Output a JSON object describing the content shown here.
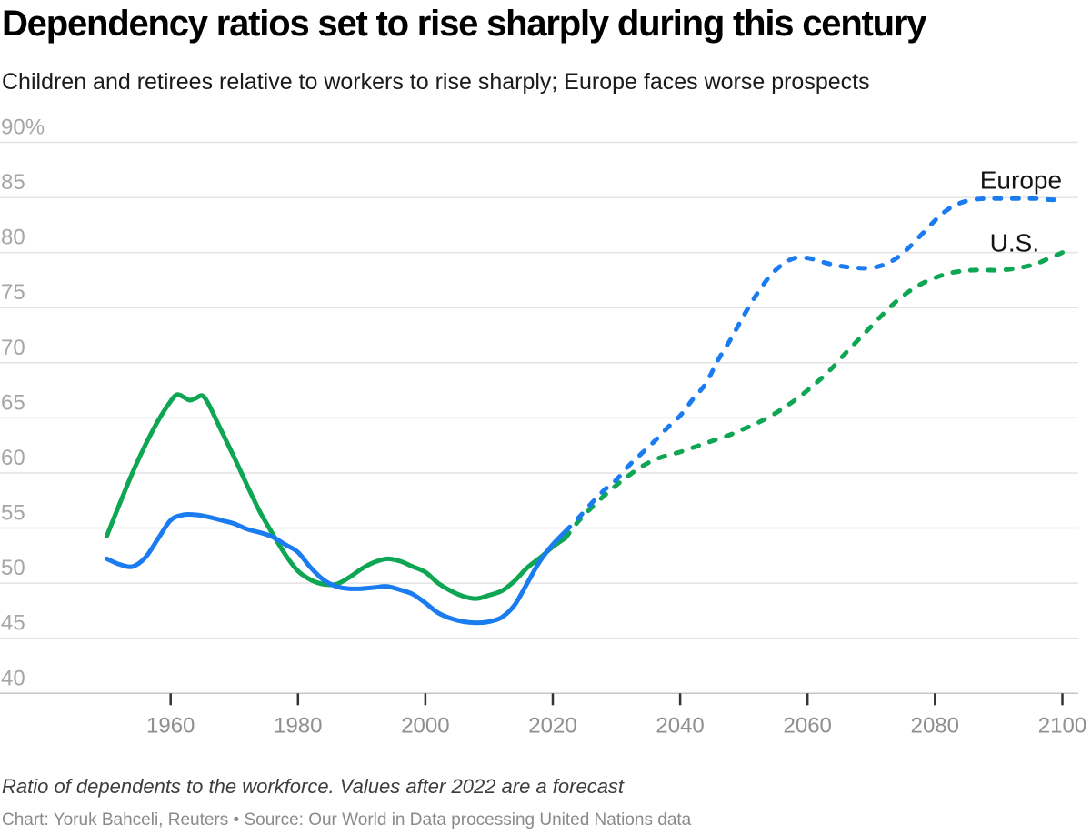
{
  "chart_data": {
    "type": "line",
    "title": "Dependency ratios set to rise sharply during this century",
    "subtitle": "Children and retirees relative to workers to rise sharply; Europe faces worse prospects",
    "note": "Ratio of dependents to the workforce. Values after 2022 are a forecast",
    "credit": "Chart: Yoruk Bahceli, Reuters • Source: Our World in Data processing United Nations data",
    "grid": "horizontal",
    "legend_position": "inline-end-labels",
    "y_axis": {
      "range": [
        40,
        90
      ],
      "unit": "%",
      "tick_values": [
        90,
        85,
        80,
        75,
        70,
        65,
        60,
        55,
        50,
        45,
        40
      ],
      "tick_labels": [
        "90%",
        "85",
        "80",
        "75",
        "70",
        "65",
        "60",
        "55",
        "50",
        "45",
        "40"
      ]
    },
    "x_axis": {
      "range": [
        1950,
        2100
      ],
      "tick_values": [
        1960,
        1980,
        2000,
        2020,
        2040,
        2060,
        2080,
        2100
      ],
      "tick_labels": [
        "1960",
        "1980",
        "2000",
        "2020",
        "2040",
        "2060",
        "2080",
        "2100"
      ]
    },
    "forecast_from": 2022,
    "colors": {
      "europe": "#1a7cf0",
      "us": "#0ea652",
      "gridline": "#e3e3e3",
      "axis_line": "#c6c6c6",
      "tick": "#333333",
      "x_label": "#8f8f8f",
      "y_label": "#a6a6a6",
      "series_label": "#141414"
    },
    "series": [
      {
        "name": "Europe",
        "color": "#1a7cf0",
        "label": "Europe",
        "label_anchor": {
          "year": 2093.5,
          "value": 85.8
        },
        "points": [
          [
            1950,
            52.2
          ],
          [
            1952,
            51.7
          ],
          [
            1954,
            51.5
          ],
          [
            1956,
            52.3
          ],
          [
            1958,
            54.0
          ],
          [
            1960,
            55.7
          ],
          [
            1962,
            56.2
          ],
          [
            1964,
            56.2
          ],
          [
            1966,
            56.0
          ],
          [
            1968,
            55.7
          ],
          [
            1970,
            55.4
          ],
          [
            1972,
            54.9
          ],
          [
            1974,
            54.6
          ],
          [
            1976,
            54.2
          ],
          [
            1978,
            53.5
          ],
          [
            1980,
            52.8
          ],
          [
            1982,
            51.4
          ],
          [
            1984,
            50.3
          ],
          [
            1986,
            49.7
          ],
          [
            1988,
            49.5
          ],
          [
            1990,
            49.5
          ],
          [
            1992,
            49.6
          ],
          [
            1994,
            49.7
          ],
          [
            1996,
            49.4
          ],
          [
            1998,
            49.0
          ],
          [
            2000,
            48.2
          ],
          [
            2002,
            47.3
          ],
          [
            2004,
            46.8
          ],
          [
            2006,
            46.5
          ],
          [
            2008,
            46.4
          ],
          [
            2010,
            46.5
          ],
          [
            2012,
            46.9
          ],
          [
            2014,
            48.0
          ],
          [
            2016,
            50.0
          ],
          [
            2018,
            52.0
          ],
          [
            2020,
            53.5
          ],
          [
            2022,
            54.7
          ],
          [
            2024,
            55.9
          ],
          [
            2026,
            57.2
          ],
          [
            2028,
            58.4
          ],
          [
            2030,
            59.4
          ],
          [
            2032,
            60.7
          ],
          [
            2034,
            61.8
          ],
          [
            2036,
            62.9
          ],
          [
            2038,
            64.1
          ],
          [
            2040,
            65.2
          ],
          [
            2042,
            66.7
          ],
          [
            2044,
            68.1
          ],
          [
            2046,
            70.3
          ],
          [
            2048,
            72.2
          ],
          [
            2050,
            74.3
          ],
          [
            2052,
            76.2
          ],
          [
            2054,
            77.8
          ],
          [
            2056,
            78.9
          ],
          [
            2058,
            79.5
          ],
          [
            2060,
            79.5
          ],
          [
            2062,
            79.2
          ],
          [
            2064,
            78.9
          ],
          [
            2066,
            78.7
          ],
          [
            2068,
            78.6
          ],
          [
            2070,
            78.6
          ],
          [
            2072,
            78.9
          ],
          [
            2074,
            79.5
          ],
          [
            2076,
            80.5
          ],
          [
            2078,
            81.7
          ],
          [
            2080,
            82.9
          ],
          [
            2082,
            83.9
          ],
          [
            2084,
            84.5
          ],
          [
            2086,
            84.8
          ],
          [
            2088,
            84.9
          ],
          [
            2090,
            84.9
          ],
          [
            2092,
            84.9
          ],
          [
            2094,
            84.9
          ],
          [
            2096,
            84.9
          ],
          [
            2098,
            84.8
          ],
          [
            2100,
            84.8
          ]
        ]
      },
      {
        "name": "U.S.",
        "color": "#0ea652",
        "label": "U.S.",
        "label_anchor": {
          "year": 2092.5,
          "value": 80.1
        },
        "points": [
          [
            1950,
            54.3
          ],
          [
            1952,
            57.2
          ],
          [
            1954,
            60.0
          ],
          [
            1956,
            62.5
          ],
          [
            1958,
            64.7
          ],
          [
            1960,
            66.5
          ],
          [
            1961,
            67.1
          ],
          [
            1962,
            66.9
          ],
          [
            1963,
            66.6
          ],
          [
            1964,
            66.8
          ],
          [
            1965,
            67.0
          ],
          [
            1966,
            66.2
          ],
          [
            1968,
            63.8
          ],
          [
            1970,
            61.4
          ],
          [
            1972,
            58.9
          ],
          [
            1974,
            56.5
          ],
          [
            1976,
            54.5
          ],
          [
            1978,
            52.6
          ],
          [
            1980,
            51.1
          ],
          [
            1982,
            50.3
          ],
          [
            1984,
            49.9
          ],
          [
            1986,
            49.9
          ],
          [
            1988,
            50.5
          ],
          [
            1990,
            51.3
          ],
          [
            1992,
            51.9
          ],
          [
            1994,
            52.2
          ],
          [
            1996,
            52.0
          ],
          [
            1998,
            51.5
          ],
          [
            2000,
            51.0
          ],
          [
            2002,
            50.0
          ],
          [
            2004,
            49.3
          ],
          [
            2006,
            48.8
          ],
          [
            2008,
            48.6
          ],
          [
            2010,
            48.9
          ],
          [
            2012,
            49.3
          ],
          [
            2014,
            50.2
          ],
          [
            2016,
            51.4
          ],
          [
            2018,
            52.3
          ],
          [
            2020,
            53.3
          ],
          [
            2022,
            54.1
          ],
          [
            2024,
            55.6
          ],
          [
            2026,
            56.8
          ],
          [
            2028,
            57.9
          ],
          [
            2030,
            58.9
          ],
          [
            2032,
            59.8
          ],
          [
            2034,
            60.6
          ],
          [
            2036,
            61.2
          ],
          [
            2038,
            61.6
          ],
          [
            2040,
            61.9
          ],
          [
            2042,
            62.3
          ],
          [
            2044,
            62.7
          ],
          [
            2046,
            63.1
          ],
          [
            2048,
            63.5
          ],
          [
            2050,
            64.0
          ],
          [
            2052,
            64.5
          ],
          [
            2054,
            65.1
          ],
          [
            2056,
            65.8
          ],
          [
            2058,
            66.6
          ],
          [
            2060,
            67.5
          ],
          [
            2062,
            68.5
          ],
          [
            2064,
            69.6
          ],
          [
            2066,
            70.9
          ],
          [
            2068,
            72.1
          ],
          [
            2070,
            73.3
          ],
          [
            2072,
            74.5
          ],
          [
            2074,
            75.6
          ],
          [
            2076,
            76.5
          ],
          [
            2078,
            77.2
          ],
          [
            2080,
            77.7
          ],
          [
            2082,
            78.1
          ],
          [
            2084,
            78.3
          ],
          [
            2086,
            78.4
          ],
          [
            2088,
            78.4
          ],
          [
            2090,
            78.4
          ],
          [
            2092,
            78.5
          ],
          [
            2094,
            78.7
          ],
          [
            2096,
            79.0
          ],
          [
            2098,
            79.5
          ],
          [
            2100,
            80.0
          ]
        ]
      }
    ]
  }
}
